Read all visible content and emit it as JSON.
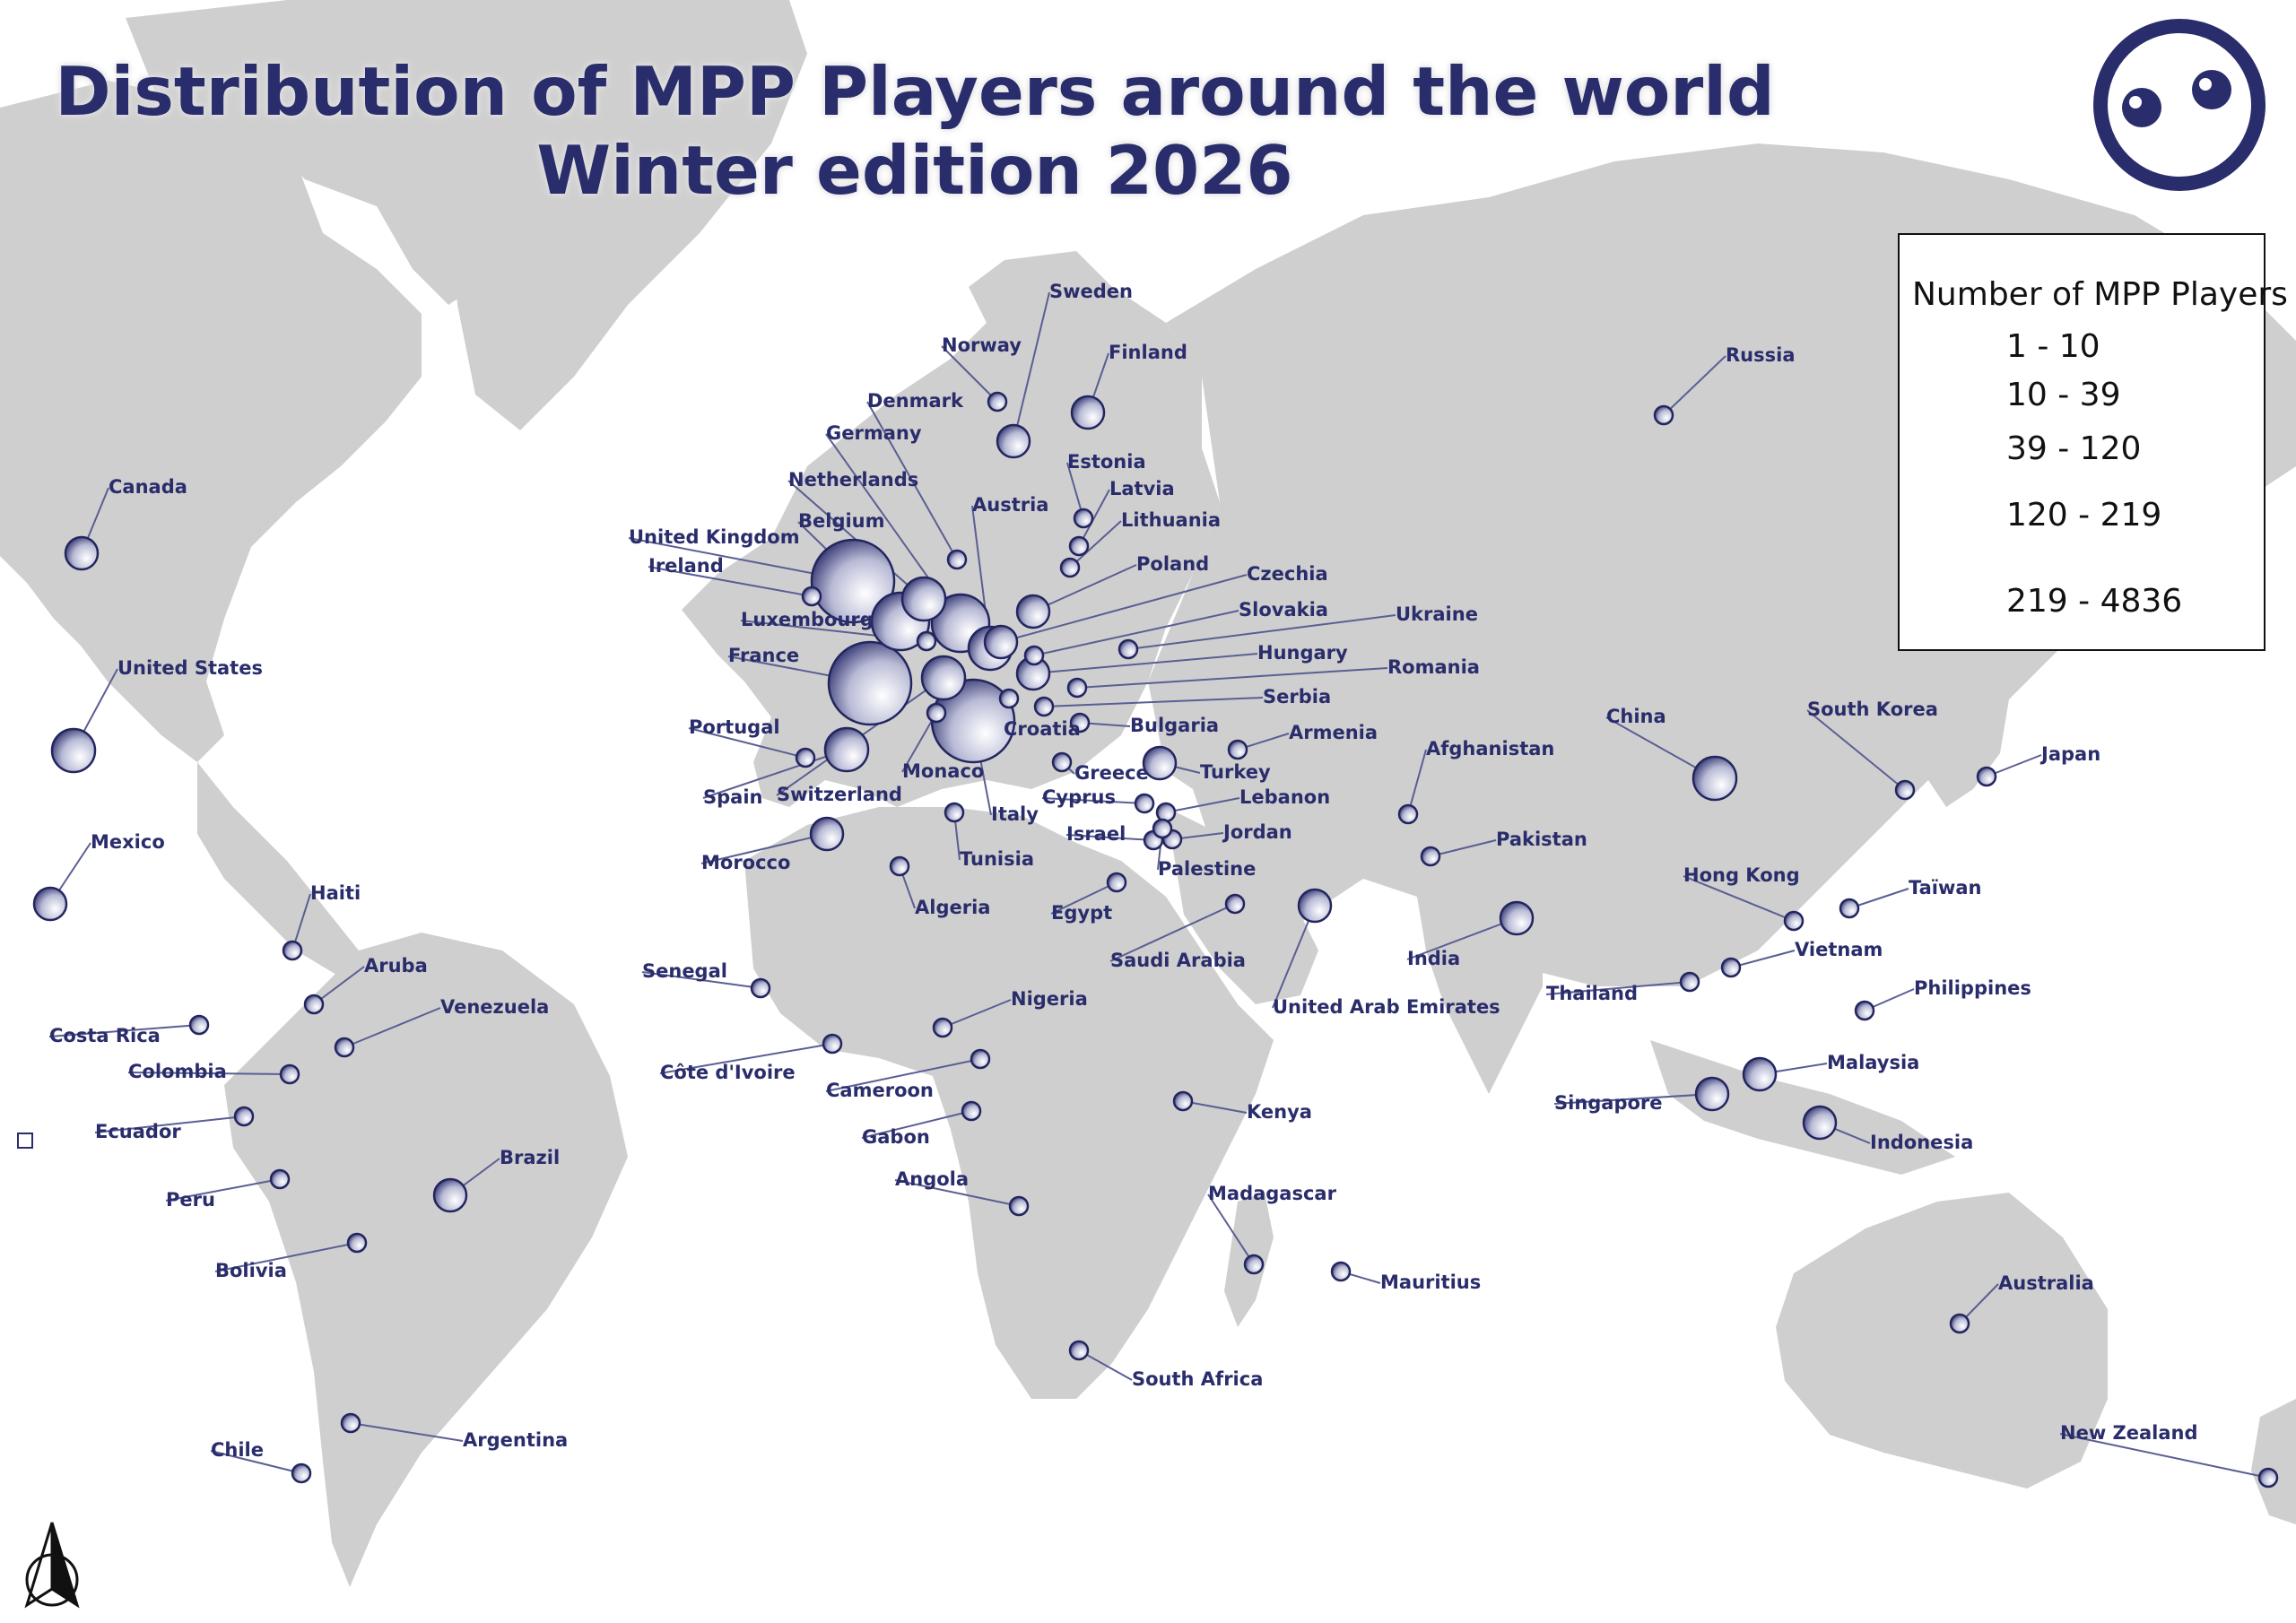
{
  "title": {
    "line1": "Distribution of MPP Players around the world",
    "line2": "Winter edition 2026"
  },
  "colors": {
    "land": "#cfcfcf",
    "ocean": "#ffffff",
    "accent": "#2a2d6b"
  },
  "icons": [
    "logo-face-icon",
    "north-arrow-icon"
  ],
  "legend": {
    "title": "Number of MPP Players",
    "classes": [
      {
        "label": "1 - 10",
        "min": 1,
        "max": 10
      },
      {
        "label": "10 - 39",
        "min": 10,
        "max": 39
      },
      {
        "label": "39 - 120",
        "min": 39,
        "max": 120
      },
      {
        "label": "120 - 219",
        "min": 120,
        "max": 219
      },
      {
        "label": "219 - 4836",
        "min": 219,
        "max": 4836
      }
    ]
  },
  "countries": [
    {
      "name": "Sweden",
      "class": 2
    },
    {
      "name": "Norway",
      "class": 1
    },
    {
      "name": "Finland",
      "class": 2
    },
    {
      "name": "Denmark",
      "class": 1
    },
    {
      "name": "Germany",
      "class": 4
    },
    {
      "name": "Netherlands",
      "class": 3
    },
    {
      "name": "Belgium",
      "class": 4
    },
    {
      "name": "United Kingdom",
      "class": 5
    },
    {
      "name": "Ireland",
      "class": 1
    },
    {
      "name": "Luxembourg",
      "class": 1
    },
    {
      "name": "France",
      "class": 5
    },
    {
      "name": "Portugal",
      "class": 1
    },
    {
      "name": "Spain",
      "class": 3
    },
    {
      "name": "Switzerland",
      "class": 3
    },
    {
      "name": "Monaco",
      "class": 1
    },
    {
      "name": "Italy",
      "class": 5
    },
    {
      "name": "Austria",
      "class": 3
    },
    {
      "name": "Estonia",
      "class": 1
    },
    {
      "name": "Latvia",
      "class": 1
    },
    {
      "name": "Lithuania",
      "class": 1
    },
    {
      "name": "Poland",
      "class": 2
    },
    {
      "name": "Czechia",
      "class": 2
    },
    {
      "name": "Slovakia",
      "class": 1
    },
    {
      "name": "Ukraine",
      "class": 1
    },
    {
      "name": "Hungary",
      "class": 2
    },
    {
      "name": "Romania",
      "class": 1
    },
    {
      "name": "Serbia",
      "class": 1
    },
    {
      "name": "Croatia",
      "class": 1
    },
    {
      "name": "Bulgaria",
      "class": 1
    },
    {
      "name": "Armenia",
      "class": 1
    },
    {
      "name": "Greece",
      "class": 1
    },
    {
      "name": "Turkey",
      "class": 2
    },
    {
      "name": "Cyprus",
      "class": 1
    },
    {
      "name": "Lebanon",
      "class": 1
    },
    {
      "name": "Israel",
      "class": 1
    },
    {
      "name": "Jordan",
      "class": 1
    },
    {
      "name": "Palestine",
      "class": 1
    },
    {
      "name": "Tunisia",
      "class": 1
    },
    {
      "name": "Algeria",
      "class": 1
    },
    {
      "name": "Morocco",
      "class": 2
    },
    {
      "name": "Egypt",
      "class": 1
    },
    {
      "name": "Saudi Arabia",
      "class": 1
    },
    {
      "name": "United Arab Emirates",
      "class": 2
    },
    {
      "name": "Russia",
      "class": 1
    },
    {
      "name": "Afghanistan",
      "class": 1
    },
    {
      "name": "Pakistan",
      "class": 1
    },
    {
      "name": "India",
      "class": 2
    },
    {
      "name": "China",
      "class": 3
    },
    {
      "name": "South Korea",
      "class": 1
    },
    {
      "name": "Japan",
      "class": 1
    },
    {
      "name": "Hong Kong",
      "class": 1
    },
    {
      "name": "Taïwan",
      "class": 1
    },
    {
      "name": "Vietnam",
      "class": 1
    },
    {
      "name": "Thailand",
      "class": 1
    },
    {
      "name": "Philippines",
      "class": 1
    },
    {
      "name": "Malaysia",
      "class": 2
    },
    {
      "name": "Singapore",
      "class": 2
    },
    {
      "name": "Indonesia",
      "class": 2
    },
    {
      "name": "Australia",
      "class": 1
    },
    {
      "name": "New Zealand",
      "class": 1
    },
    {
      "name": "Canada",
      "class": 2
    },
    {
      "name": "United States",
      "class": 3
    },
    {
      "name": "Mexico",
      "class": 2
    },
    {
      "name": "Haiti",
      "class": 1
    },
    {
      "name": "Aruba",
      "class": 1
    },
    {
      "name": "Venezuela",
      "class": 1
    },
    {
      "name": "Costa Rica",
      "class": 1
    },
    {
      "name": "Colombia",
      "class": 1
    },
    {
      "name": "Ecuador",
      "class": 1
    },
    {
      "name": "Peru",
      "class": 1
    },
    {
      "name": "Brazil",
      "class": 2
    },
    {
      "name": "Bolivia",
      "class": 1
    },
    {
      "name": "Argentina",
      "class": 1
    },
    {
      "name": "Chile",
      "class": 1
    },
    {
      "name": "Senegal",
      "class": 1
    },
    {
      "name": "Côte d'Ivoire",
      "class": 1
    },
    {
      "name": "Nigeria",
      "class": 1
    },
    {
      "name": "Cameroon",
      "class": 1
    },
    {
      "name": "Gabon",
      "class": 1
    },
    {
      "name": "Angola",
      "class": 1
    },
    {
      "name": "Kenya",
      "class": 1
    },
    {
      "name": "Madagascar",
      "class": 1
    },
    {
      "name": "Mauritius",
      "class": 1
    },
    {
      "name": "South Africa",
      "class": 1
    }
  ]
}
